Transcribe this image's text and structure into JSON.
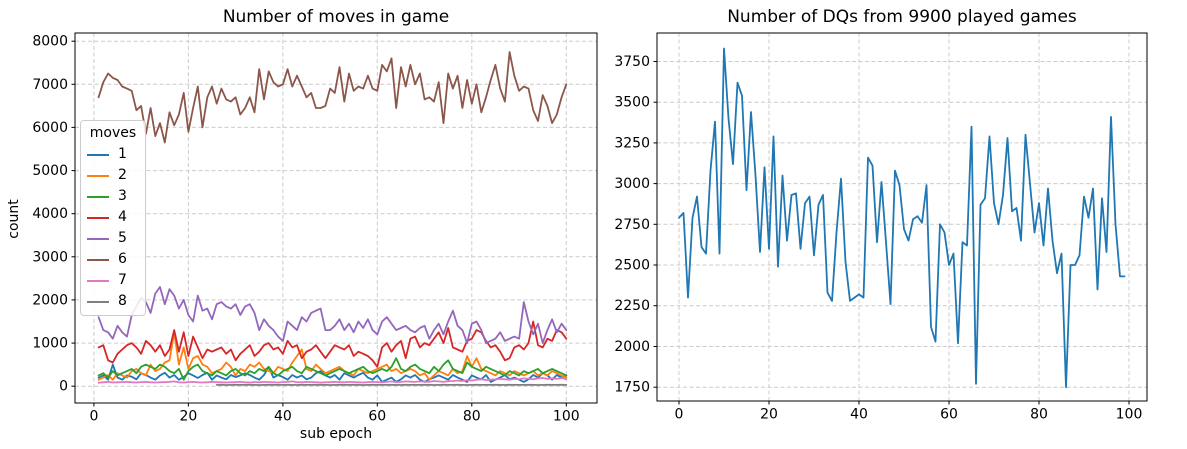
{
  "figure": {
    "background": "#ffffff",
    "text_color": "#000000",
    "grid_color": "#cccccc",
    "spine_color": "#000000",
    "accent_blue": "#1f77b4"
  },
  "chart_data": [
    {
      "id": "moves",
      "type": "line",
      "title": "Number of moves in game",
      "xlabel": "sub epoch",
      "ylabel": "count",
      "grid": true,
      "xlim": [
        -4,
        106.5
      ],
      "ylim": [
        -390,
        8190
      ],
      "xticks": [
        0,
        20,
        40,
        60,
        80,
        100
      ],
      "yticks": [
        0,
        1000,
        2000,
        3000,
        4000,
        5000,
        6000,
        7000,
        8000
      ],
      "legend": {
        "title": "moves",
        "position": "upper-left"
      },
      "series": [
        {
          "name": "1",
          "color": "#1f77b4",
          "x_start": 1,
          "values": [
            200,
            250,
            150,
            500,
            200,
            150,
            250,
            220,
            160,
            300,
            260,
            200,
            150,
            250,
            310,
            200,
            260,
            150,
            210,
            300,
            250,
            190,
            260,
            310,
            150,
            250,
            200,
            160,
            260,
            210,
            250,
            300,
            260,
            200,
            150,
            260,
            450,
            200,
            260,
            210,
            150,
            260,
            200,
            250,
            160,
            200,
            300,
            350,
            250,
            200,
            260,
            150,
            300,
            250,
            200,
            260,
            310,
            200,
            150,
            250,
            100,
            150,
            200,
            100,
            160,
            250,
            200,
            260,
            150,
            100,
            160,
            200,
            250,
            200,
            150,
            260,
            200,
            150,
            100,
            250,
            200,
            160,
            260,
            100,
            150,
            200,
            260,
            160,
            200,
            150,
            100,
            160,
            260,
            200,
            300,
            250,
            150,
            260,
            200,
            250
          ]
        },
        {
          "name": "2",
          "color": "#ff7f0e",
          "x_start": 1,
          "values": [
            150,
            200,
            260,
            150,
            300,
            250,
            200,
            350,
            400,
            300,
            250,
            500,
            350,
            400,
            550,
            600,
            1250,
            500,
            900,
            400,
            650,
            700,
            500,
            450,
            300,
            350,
            400,
            550,
            450,
            250,
            400,
            350,
            500,
            450,
            550,
            400,
            350,
            300,
            450,
            400,
            350,
            550,
            700,
            850,
            400,
            350,
            500,
            400,
            300,
            350,
            400,
            450,
            350,
            300,
            250,
            400,
            350,
            300,
            350,
            400,
            450,
            500,
            350,
            400,
            300,
            350,
            400,
            350,
            250,
            300,
            150,
            250,
            350,
            300,
            250,
            400,
            300,
            350,
            700,
            450,
            650,
            400,
            350,
            300,
            250,
            350,
            300,
            250,
            350,
            300,
            250,
            300,
            350,
            250,
            300,
            250,
            350,
            300,
            250,
            200
          ]
        },
        {
          "name": "3",
          "color": "#2ca02c",
          "x_start": 1,
          "values": [
            250,
            300,
            200,
            350,
            250,
            300,
            350,
            400,
            300,
            450,
            500,
            450,
            400,
            500,
            450,
            350,
            300,
            400,
            150,
            350,
            450,
            500,
            350,
            300,
            250,
            350,
            300,
            250,
            350,
            400,
            300,
            250,
            350,
            300,
            400,
            350,
            450,
            300,
            250,
            350,
            400,
            450,
            350,
            300,
            450,
            400,
            350,
            300,
            250,
            300,
            350,
            400,
            350,
            300,
            350,
            400,
            450,
            350,
            300,
            350,
            400,
            350,
            450,
            650,
            400,
            350,
            450,
            500,
            400,
            350,
            300,
            450,
            350,
            500,
            600,
            400,
            350,
            300,
            550,
            450,
            400,
            350,
            450,
            400,
            350,
            300,
            250,
            350,
            300,
            250,
            350,
            300,
            350,
            400,
            300,
            350,
            400,
            350,
            300,
            250
          ]
        },
        {
          "name": "4",
          "color": "#d62728",
          "x_start": 1,
          "values": [
            900,
            950,
            600,
            550,
            750,
            850,
            950,
            1000,
            900,
            750,
            1050,
            950,
            800,
            950,
            700,
            850,
            1300,
            800,
            1250,
            700,
            1150,
            900,
            650,
            850,
            800,
            850,
            900,
            750,
            850,
            600,
            750,
            850,
            950,
            700,
            800,
            950,
            1000,
            850,
            900,
            750,
            1050,
            900,
            950,
            650,
            800,
            850,
            950,
            800,
            650,
            800,
            950,
            900,
            850,
            950,
            700,
            800,
            750,
            700,
            600,
            450,
            900,
            1000,
            800,
            950,
            1050,
            650,
            1100,
            1150,
            900,
            1000,
            950,
            1100,
            1250,
            1000,
            1350,
            900,
            850,
            800,
            1050,
            1100,
            1300,
            1250,
            1050,
            900,
            950,
            800,
            600,
            650,
            900,
            950,
            850,
            1000,
            1500,
            950,
            900,
            1100,
            1050,
            1300,
            1250,
            1100
          ]
        },
        {
          "name": "5",
          "color": "#9467bd",
          "x_start": 1,
          "values": [
            1600,
            1300,
            1250,
            1100,
            1400,
            1250,
            1150,
            1650,
            1850,
            2050,
            1950,
            1700,
            2150,
            2300,
            1900,
            2250,
            2100,
            1800,
            2000,
            1650,
            1500,
            2100,
            1750,
            1800,
            1550,
            1900,
            1950,
            1850,
            1800,
            1900,
            1650,
            1850,
            1900,
            1700,
            1300,
            1550,
            1400,
            1300,
            1150,
            1050,
            1500,
            1400,
            1300,
            1600,
            1500,
            1700,
            1750,
            1800,
            1300,
            1300,
            1400,
            1550,
            1300,
            1450,
            1250,
            1500,
            1350,
            1550,
            1300,
            1200,
            1500,
            1600,
            1450,
            1300,
            1350,
            1400,
            1300,
            1250,
            1350,
            1400,
            1100,
            1300,
            1450,
            1200,
            1500,
            1750,
            1400,
            1300,
            1000,
            1450,
            1500,
            1300,
            1000,
            1050,
            1100,
            1250,
            1050,
            1100,
            1150,
            1100,
            1950,
            1500,
            1200,
            1450,
            1000,
            1300,
            1550,
            1250,
            1450,
            1300
          ]
        },
        {
          "name": "6",
          "color": "#8c564b",
          "x_start": 1,
          "values": [
            6700,
            7050,
            7250,
            7150,
            7100,
            6950,
            6900,
            6850,
            6400,
            6500,
            5850,
            6450,
            5800,
            6100,
            5650,
            6350,
            6050,
            6300,
            6800,
            5900,
            6450,
            6950,
            6000,
            6700,
            6950,
            6550,
            6900,
            6650,
            6600,
            6700,
            6300,
            6450,
            6700,
            6350,
            7350,
            6650,
            7300,
            7050,
            6950,
            7000,
            7350,
            6950,
            7200,
            6950,
            6700,
            6800,
            6450,
            6450,
            6500,
            6900,
            6800,
            7400,
            6600,
            7250,
            6850,
            6950,
            6900,
            7200,
            6900,
            6850,
            7450,
            7300,
            7600,
            6450,
            7400,
            6950,
            7450,
            7000,
            7250,
            6650,
            6700,
            6600,
            7050,
            6100,
            7250,
            6900,
            7200,
            6450,
            7100,
            6550,
            7000,
            6350,
            6700,
            7100,
            7450,
            6900,
            6600,
            7750,
            7200,
            6850,
            6950,
            6900,
            6400,
            6150,
            6750,
            6500,
            6100,
            6300,
            6700,
            7000
          ]
        },
        {
          "name": "7",
          "color": "#e377c2",
          "x_start": 1,
          "values": [
            80,
            90,
            100,
            85,
            90,
            95,
            100,
            90,
            85,
            95,
            100,
            90,
            85,
            90,
            95,
            100,
            110,
            90,
            85,
            95,
            100,
            90,
            85,
            90,
            100,
            95,
            90,
            85,
            90,
            95,
            100,
            90,
            85,
            95,
            90,
            100,
            95,
            90,
            85,
            95,
            100,
            110,
            95,
            90,
            100,
            95,
            90,
            85,
            90,
            95,
            100,
            95,
            90,
            100,
            95,
            90,
            85,
            95,
            100,
            95,
            90,
            100,
            110,
            95,
            100,
            110,
            105,
            100,
            110,
            105,
            100,
            120,
            110,
            100,
            115,
            120,
            130,
            120,
            140,
            130,
            150,
            160,
            140,
            150,
            160,
            170,
            160,
            150,
            170,
            160,
            180,
            170,
            160,
            180,
            190,
            170,
            180,
            170,
            190,
            160
          ]
        },
        {
          "name": "8",
          "color": "#7f7f7f",
          "x_start": 26,
          "values": [
            30,
            32,
            28,
            30,
            31,
            29,
            30,
            32,
            30,
            28,
            30,
            31,
            30,
            29,
            30,
            32,
            30,
            28,
            31,
            30,
            29,
            30,
            32,
            30,
            28,
            30,
            31,
            29,
            30,
            32,
            30,
            28,
            30,
            31,
            30,
            29,
            30,
            32,
            30,
            28,
            31,
            30,
            29,
            30,
            32,
            30,
            28,
            30,
            31,
            29,
            30,
            32,
            30,
            28,
            30,
            31,
            30,
            29,
            30,
            32,
            30,
            28,
            31,
            30,
            29,
            30,
            32,
            30,
            28,
            30,
            31,
            29,
            30,
            32,
            30
          ]
        }
      ]
    },
    {
      "id": "dqs",
      "type": "line",
      "title": "Number of DQs from 9900 played games",
      "xlabel": "",
      "ylabel": "",
      "grid": true,
      "xlim": [
        -4.9,
        104
      ],
      "ylim": [
        1665,
        3925
      ],
      "xticks": [
        0,
        20,
        40,
        60,
        80,
        100
      ],
      "yticks": [
        1750,
        2000,
        2250,
        2500,
        2750,
        3000,
        3250,
        3500,
        3750
      ],
      "legend": null,
      "series": [
        {
          "name": "DQs",
          "color": "#1f77b4",
          "x_start": 0,
          "values": [
            2790,
            2820,
            2300,
            2790,
            2920,
            2610,
            2570,
            3080,
            3380,
            2570,
            3830,
            3400,
            3120,
            3620,
            3540,
            2960,
            3440,
            3050,
            2580,
            3100,
            2600,
            3290,
            2490,
            3050,
            2650,
            2930,
            2940,
            2600,
            2880,
            2920,
            2560,
            2870,
            2930,
            2330,
            2280,
            2700,
            3030,
            2520,
            2280,
            2300,
            2320,
            2300,
            3160,
            3110,
            2640,
            3010,
            2640,
            2260,
            3080,
            2990,
            2720,
            2650,
            2780,
            2800,
            2760,
            2990,
            2120,
            2030,
            2750,
            2700,
            2500,
            2570,
            2020,
            2640,
            2620,
            3350,
            1770,
            2870,
            2910,
            3290,
            2880,
            2750,
            2930,
            3280,
            2830,
            2850,
            2650,
            3300,
            3000,
            2700,
            2880,
            2620,
            2970,
            2650,
            2450,
            2570,
            1750,
            2500,
            2500,
            2560,
            2920,
            2790,
            2970,
            2350,
            2910,
            2580,
            3410,
            2750,
            2430,
            2430
          ]
        }
      ]
    }
  ]
}
